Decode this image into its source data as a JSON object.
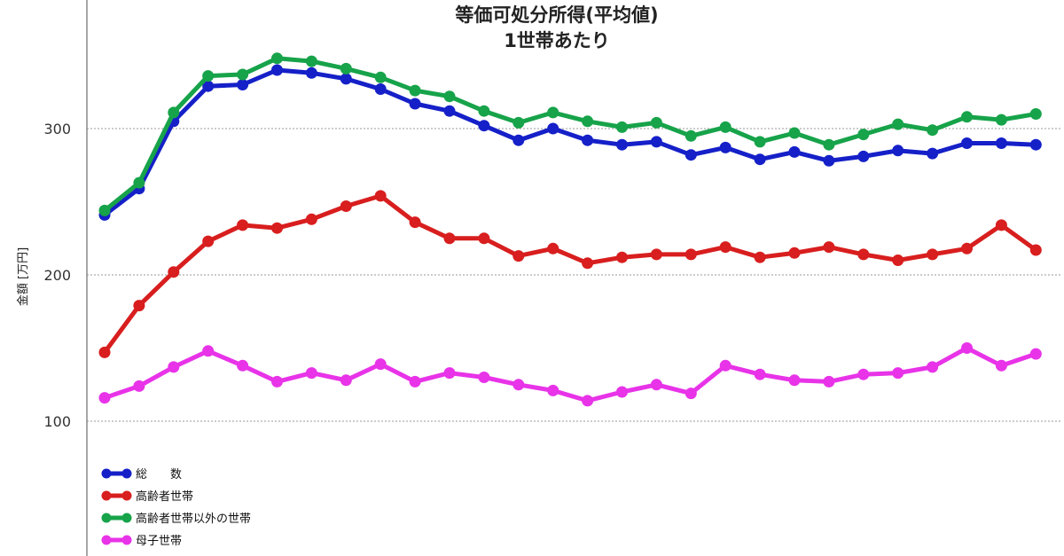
{
  "chart_data": {
    "type": "line",
    "title": "等価可処分所得(平均値)",
    "subtitle": "1世帯あたり",
    "ylabel": "金額 [万円]",
    "xlabel": "",
    "ylim": [
      40,
      360
    ],
    "yticks": [
      100,
      200,
      300
    ],
    "grid": true,
    "legend_position": "bottom-left",
    "x": [
      1,
      2,
      3,
      4,
      5,
      6,
      7,
      8,
      9,
      10,
      11,
      12,
      13,
      14,
      15,
      16,
      17,
      18,
      19,
      20,
      21,
      22,
      23,
      24,
      25,
      26,
      27,
      28,
      29
    ],
    "series": [
      {
        "name": "総　　数",
        "color": "#1520c8",
        "values": [
          241,
          259,
          305,
          329,
          330,
          340,
          338,
          334,
          327,
          317,
          312,
          302,
          292,
          300,
          292,
          289,
          291,
          282,
          287,
          279,
          284,
          278,
          281,
          285,
          283,
          290,
          290,
          289,
          null
        ]
      },
      {
        "name": "高齢者世帯",
        "color": "#d81e1e",
        "values": [
          147,
          179,
          202,
          223,
          234,
          232,
          238,
          247,
          254,
          236,
          225,
          225,
          213,
          218,
          208,
          212,
          214,
          214,
          219,
          212,
          215,
          219,
          214,
          210,
          214,
          218,
          234,
          217,
          null
        ]
      },
      {
        "name": "高齢者世帯以外の世帯",
        "color": "#17a34a",
        "values": [
          244,
          263,
          311,
          336,
          337,
          348,
          346,
          341,
          335,
          326,
          322,
          312,
          304,
          311,
          305,
          301,
          304,
          295,
          301,
          291,
          297,
          289,
          296,
          303,
          299,
          308,
          306,
          310,
          null
        ]
      },
      {
        "name": "母子世帯",
        "color": "#e833e8",
        "values": [
          116,
          124,
          137,
          148,
          138,
          127,
          133,
          128,
          139,
          127,
          133,
          130,
          125,
          121,
          114,
          120,
          125,
          119,
          138,
          132,
          128,
          127,
          132,
          133,
          137,
          150,
          138,
          146,
          null
        ]
      }
    ]
  }
}
